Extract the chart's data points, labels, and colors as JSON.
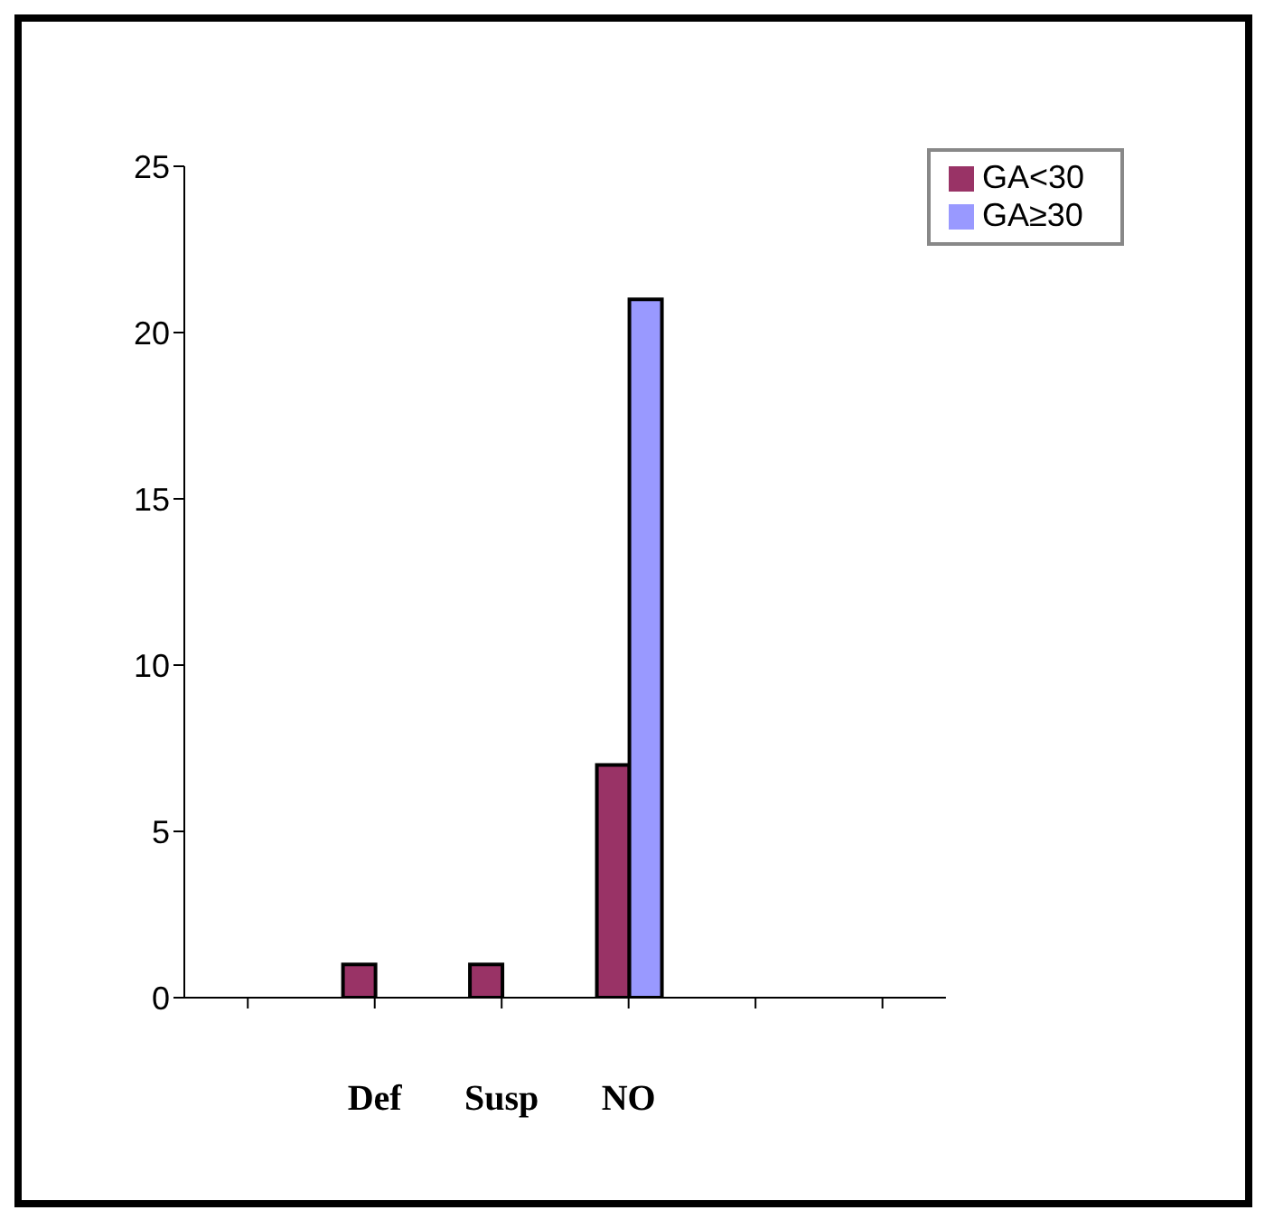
{
  "chart_data": {
    "type": "bar",
    "categories": [
      null,
      "Def",
      "Susp",
      "NO",
      null,
      null
    ],
    "series": [
      {
        "name": "GA<30",
        "color": "#993366",
        "values": [
          0,
          1,
          1,
          7,
          0,
          0
        ]
      },
      {
        "name": "GA≥30",
        "color": "#9999ff",
        "values": [
          0,
          0,
          0,
          21,
          0,
          0
        ]
      }
    ],
    "ylim": [
      0,
      25
    ],
    "yticks": [
      0,
      5,
      10,
      15,
      20,
      25
    ],
    "grid": false,
    "legend": "top right"
  }
}
